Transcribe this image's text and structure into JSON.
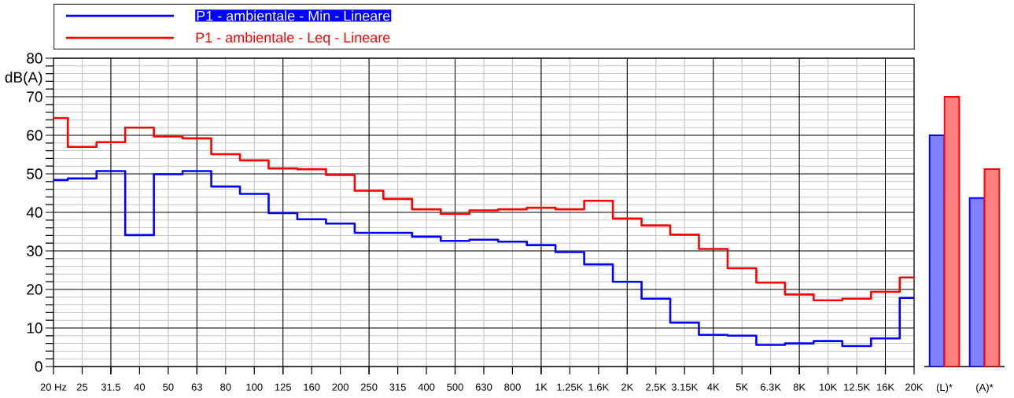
{
  "chart_data": [
    {
      "type": "step",
      "categories": [
        "20 Hz",
        "25",
        "31.5",
        "40",
        "50",
        "63",
        "80",
        "100",
        "125",
        "160",
        "200",
        "250",
        "315",
        "400",
        "500",
        "630",
        "800",
        "1K",
        "1.25K",
        "1.6K",
        "2K",
        "2.5K",
        "3.15K",
        "4K",
        "5K",
        "6.3K",
        "8K",
        "10K",
        "12.5K",
        "16K",
        "20K"
      ],
      "series": [
        {
          "name": "P1 - ambientale - Min - Lineare",
          "color": "#0000ff",
          "values": [
            48.4,
            48.8,
            50.7,
            34.1,
            49.9,
            50.7,
            46.7,
            44.8,
            39.8,
            38.2,
            37.1,
            34.7,
            34.7,
            33.7,
            32.6,
            32.9,
            32.4,
            31.5,
            29.7,
            26.5,
            22.0,
            17.6,
            11.4,
            8.2,
            8.0,
            5.6,
            6.0,
            6.6,
            5.3,
            7.3,
            17.8
          ]
        },
        {
          "name": "P1 - ambientale - Leq - Lineare",
          "color": "#ff0000",
          "values": [
            64.5,
            57.0,
            58.2,
            62.0,
            59.7,
            59.2,
            55.1,
            53.5,
            51.4,
            51.2,
            49.7,
            45.6,
            43.5,
            40.8,
            39.6,
            40.5,
            40.8,
            41.2,
            40.8,
            43.0,
            38.4,
            36.6,
            34.2,
            30.5,
            25.5,
            21.8,
            18.7,
            17.2,
            17.6,
            19.4,
            23.1
          ]
        }
      ],
      "ylabel": "dB(A)",
      "ylim": [
        0,
        80
      ],
      "yticks": [
        0,
        10,
        20,
        30,
        40,
        50,
        60,
        70,
        80
      ],
      "grid": true,
      "legend": "top"
    },
    {
      "type": "bar",
      "categories": [
        "(L)*",
        "(A)*"
      ],
      "series": [
        {
          "color": "#8080ff",
          "values": [
            60,
            43.7
          ]
        },
        {
          "color": "#ff8080",
          "values": [
            70,
            51.2
          ]
        }
      ],
      "ylim": [
        0,
        80
      ],
      "tick_labels": "x"
    }
  ]
}
